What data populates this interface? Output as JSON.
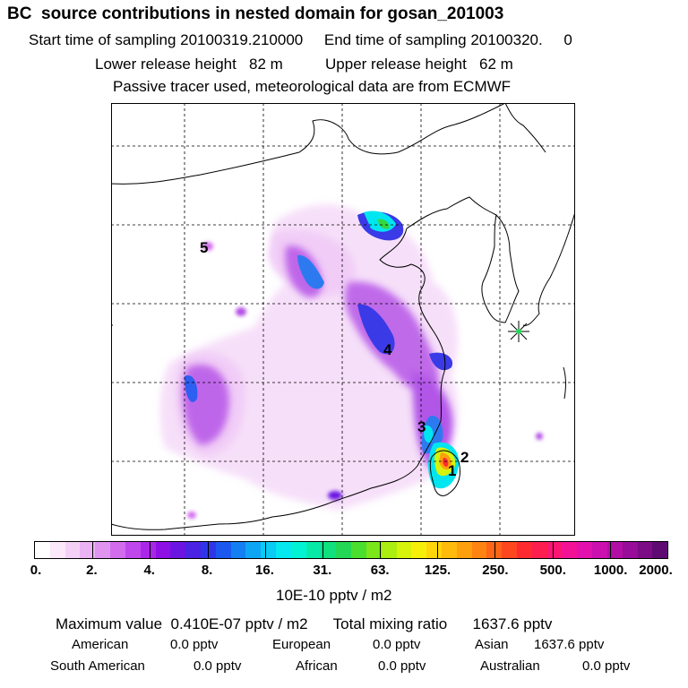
{
  "title": "BC  source contributions in nested domain for gosan_201003",
  "header": {
    "start_label": "Start time of sampling",
    "start_value": "20100319.210000",
    "end_label": "End time of sampling",
    "end_value": "20100320.",
    "end_suffix": "0",
    "lower_label": "Lower release height",
    "lower_value": "82 m",
    "upper_label": "Upper release height",
    "upper_value": "62 m",
    "note": "Passive tracer used, meteorological data are from ECMWF"
  },
  "map": {
    "grid": "dashed",
    "markers": [
      {
        "label": "1"
      },
      {
        "label": "2"
      },
      {
        "label": "3"
      },
      {
        "label": "4"
      },
      {
        "label": "5"
      }
    ],
    "receptor_symbol": "star-icon"
  },
  "colorbar": {
    "tick_labels": [
      "0.",
      "2.",
      "4.",
      "8.",
      "16.",
      "31.",
      "63.",
      "125.",
      "250.",
      "500.",
      "1000.",
      "2000."
    ],
    "colors": [
      "#ffffff",
      "#fbe8fb",
      "#f4d0f7",
      "#eab3f3",
      "#df95f0",
      "#d26ced",
      "#c047ec",
      "#aa27ea",
      "#8e10e4",
      "#6c15e2",
      "#4a23e4",
      "#2f36ea",
      "#1c58ef",
      "#147ff2",
      "#0ea6f4",
      "#09cbf4",
      "#05e8ef",
      "#02f3d4",
      "#06eaa8",
      "#10e07e",
      "#23d855",
      "#4ade2e",
      "#7be61a",
      "#abee10",
      "#d6f30c",
      "#f6ef0a",
      "#fed60a",
      "#febb0b",
      "#fea00e",
      "#fe8412",
      "#fe6517",
      "#fe461f",
      "#fe2a30",
      "#fe1d4f",
      "#fa1672",
      "#f31296",
      "#e211ad",
      "#cb10af",
      "#b20ea6",
      "#970c98",
      "#7c0b86",
      "#5e0a72"
    ],
    "units": "10E-10 pptv / m2"
  },
  "summary": {
    "max_label": "Maximum value",
    "max_value": "0.410E-07 pptv / m2",
    "total_label": "Total mixing ratio",
    "total_value": "1637.6 pptv",
    "regions": [
      {
        "name": "American",
        "value": "0.0 pptv"
      },
      {
        "name": "European",
        "value": "0.0 pptv"
      },
      {
        "name": "Asian",
        "value": "1637.6 pptv"
      },
      {
        "name": "South American",
        "value": "0.0 pptv"
      },
      {
        "name": "African",
        "value": "0.0 pptv"
      },
      {
        "name": "Australian",
        "value": "0.0 pptv"
      }
    ]
  }
}
